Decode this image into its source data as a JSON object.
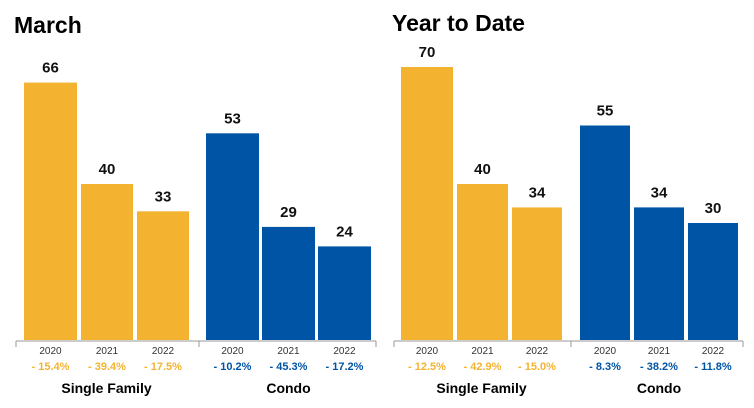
{
  "colors": {
    "single_family": "#F3B331",
    "condo": "#0054A6",
    "axis": "#9a9a9a"
  },
  "chart_data": [
    {
      "type": "bar",
      "title": "March",
      "categories": [
        "2020",
        "2021",
        "2022"
      ],
      "groups": [
        {
          "name": "Single Family",
          "color": "single_family",
          "values": [
            66,
            40,
            33
          ],
          "changes": [
            "- 15.4%",
            "- 39.4%",
            "- 17.5%"
          ]
        },
        {
          "name": "Condo",
          "color": "condo",
          "values": [
            53,
            29,
            24
          ],
          "changes": [
            "- 10.2%",
            "- 45.3%",
            "- 17.2%"
          ]
        }
      ],
      "ylim": [
        0,
        80
      ]
    },
    {
      "type": "bar",
      "title": "Year to Date",
      "categories": [
        "2020",
        "2021",
        "2022"
      ],
      "groups": [
        {
          "name": "Single Family",
          "color": "single_family",
          "values": [
            70,
            40,
            34
          ],
          "changes": [
            "- 12.5%",
            "- 42.9%",
            "- 15.0%"
          ]
        },
        {
          "name": "Condo",
          "color": "condo",
          "values": [
            55,
            34,
            30
          ],
          "changes": [
            "- 8.3%",
            "- 38.2%",
            "- 11.8%"
          ]
        }
      ],
      "ylim": [
        0,
        80
      ]
    }
  ]
}
